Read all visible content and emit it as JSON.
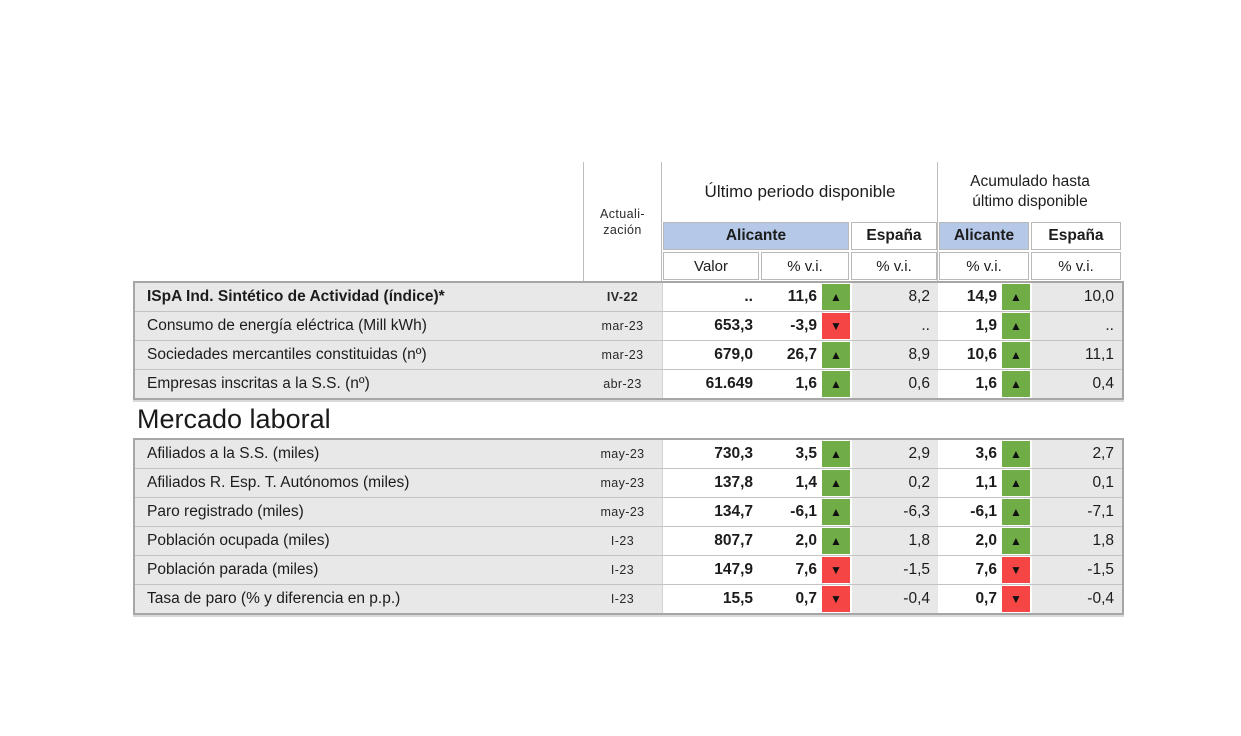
{
  "colors": {
    "alicante_header_bg": "#b6c8e8",
    "trend_up_bg": "#70ad47",
    "trend_down_bg": "#f64545",
    "row_label_bg": "#e8e8e8",
    "espana_column_bg": "#e8e8e8",
    "table_border": "#a6a6a6"
  },
  "icons": {
    "up_glyph": "▲",
    "down_glyph": "▼"
  },
  "header": {
    "actualizacion_line1": "Actuali-",
    "actualizacion_line2": "zación",
    "ultimo_periodo": "Último periodo disponible",
    "acumulado_line1": "Acumulado hasta",
    "acumulado_line2": "último disponible",
    "alicante": "Alicante",
    "espana": "España",
    "valor": "Valor",
    "pct": "% v.i."
  },
  "sections": [
    {
      "rows": [
        {
          "label": "ISpA Ind. Sintético de Actividad (índice)*",
          "emphasis": "bold",
          "date": "IV-22",
          "valor": "..",
          "ali": "11,6",
          "ali_dir": "up",
          "esp": "8,2",
          "acu": "14,9",
          "acu_dir": "up",
          "esp_acu": "10,0"
        },
        {
          "label": "Consumo de energía eléctrica (Mill kWh)",
          "date": "mar-23",
          "valor": "653,3",
          "ali": "-3,9",
          "ali_dir": "down",
          "esp": "..",
          "acu": "1,9",
          "acu_dir": "up",
          "esp_acu": ".."
        },
        {
          "label": "Sociedades mercantiles constituidas (nº)",
          "date": "mar-23",
          "valor": "679,0",
          "ali": "26,7",
          "ali_dir": "up",
          "esp": "8,9",
          "acu": "10,6",
          "acu_dir": "up",
          "esp_acu": "11,1"
        },
        {
          "label": "Empresas inscritas a la S.S. (nº)",
          "date": "abr-23",
          "valor": "61.649",
          "ali": "1,6",
          "ali_dir": "up",
          "esp": "0,6",
          "acu": "1,6",
          "acu_dir": "up",
          "esp_acu": "0,4"
        }
      ]
    },
    {
      "title": "Mercado laboral",
      "rows": [
        {
          "label": "Afiliados a la S.S. (miles)",
          "date": "may-23",
          "valor": "730,3",
          "ali": "3,5",
          "ali_dir": "up",
          "esp": "2,9",
          "acu": "3,6",
          "acu_dir": "up",
          "esp_acu": "2,7"
        },
        {
          "label": "Afiliados R. Esp. T. Autónomos (miles)",
          "date": "may-23",
          "valor": "137,8",
          "ali": "1,4",
          "ali_dir": "up",
          "esp": "0,2",
          "acu": "1,1",
          "acu_dir": "up",
          "esp_acu": "0,1"
        },
        {
          "label": "Paro registrado (miles)",
          "date": "may-23",
          "valor": "134,7",
          "ali": "-6,1",
          "ali_dir": "up",
          "esp": "-6,3",
          "acu": "-6,1",
          "acu_dir": "up",
          "esp_acu": "-7,1"
        },
        {
          "label": "Población ocupada (miles)",
          "date": "I-23",
          "valor": "807,7",
          "ali": "2,0",
          "ali_dir": "up",
          "esp": "1,8",
          "acu": "2,0",
          "acu_dir": "up",
          "esp_acu": "1,8"
        },
        {
          "label": "Población parada (miles)",
          "date": "I-23",
          "valor": "147,9",
          "ali": "7,6",
          "ali_dir": "down",
          "esp": "-1,5",
          "acu": "7,6",
          "acu_dir": "down",
          "esp_acu": "-1,5"
        },
        {
          "label": "Tasa de paro (% y diferencia en p.p.)",
          "date": "I-23",
          "valor": "15,5",
          "ali": "0,7",
          "ali_dir": "down",
          "esp": "-0,4",
          "acu": "0,7",
          "acu_dir": "down",
          "esp_acu": "-0,4"
        }
      ]
    }
  ]
}
